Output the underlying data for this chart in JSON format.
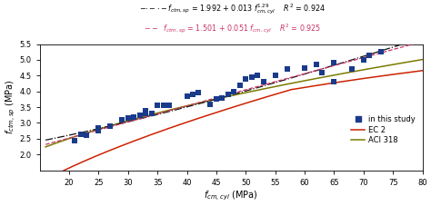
{
  "scatter_x": [
    21,
    22,
    23,
    25,
    25,
    27,
    29,
    30,
    31,
    32,
    33,
    33,
    34,
    35,
    36,
    37,
    40,
    41,
    42,
    44,
    45,
    46,
    47,
    48,
    49,
    50,
    51,
    52,
    53,
    55,
    57,
    60,
    62,
    63,
    65,
    65,
    68,
    70,
    71,
    73
  ],
  "scatter_y": [
    2.45,
    2.65,
    2.6,
    2.75,
    2.85,
    2.9,
    3.1,
    3.15,
    3.2,
    3.25,
    3.3,
    3.4,
    3.3,
    3.55,
    3.55,
    3.55,
    3.85,
    3.9,
    3.95,
    3.6,
    3.75,
    3.8,
    3.9,
    4.0,
    4.2,
    4.4,
    4.45,
    4.5,
    4.3,
    4.5,
    4.7,
    4.75,
    4.85,
    4.6,
    4.9,
    4.3,
    4.7,
    5.0,
    5.15,
    5.25
  ],
  "xlim": [
    15,
    80
  ],
  "ylim": [
    1.5,
    5.5
  ],
  "xticks": [
    20,
    25,
    30,
    35,
    40,
    45,
    50,
    55,
    60,
    65,
    70,
    75,
    80
  ],
  "yticks": [
    2.0,
    2.5,
    3.0,
    3.5,
    4.0,
    4.5,
    5.0,
    5.5
  ],
  "xlabel": "$f_{cm,cyl}$ (MPa)",
  "ylabel": "$f_{ctm,sp}$ (MPa)",
  "scatter_color": "#1a3a8a",
  "scatter_marker": "s",
  "scatter_size": 14,
  "study_label": "in this study",
  "ec2_label": "EC 2",
  "aci_label": "ACI 318",
  "ec2_color": "#cc2200",
  "aci_color": "#7a7a00",
  "fit1_color": "#111111",
  "fit2_color": "#cc3366",
  "background_color": "#ffffff"
}
